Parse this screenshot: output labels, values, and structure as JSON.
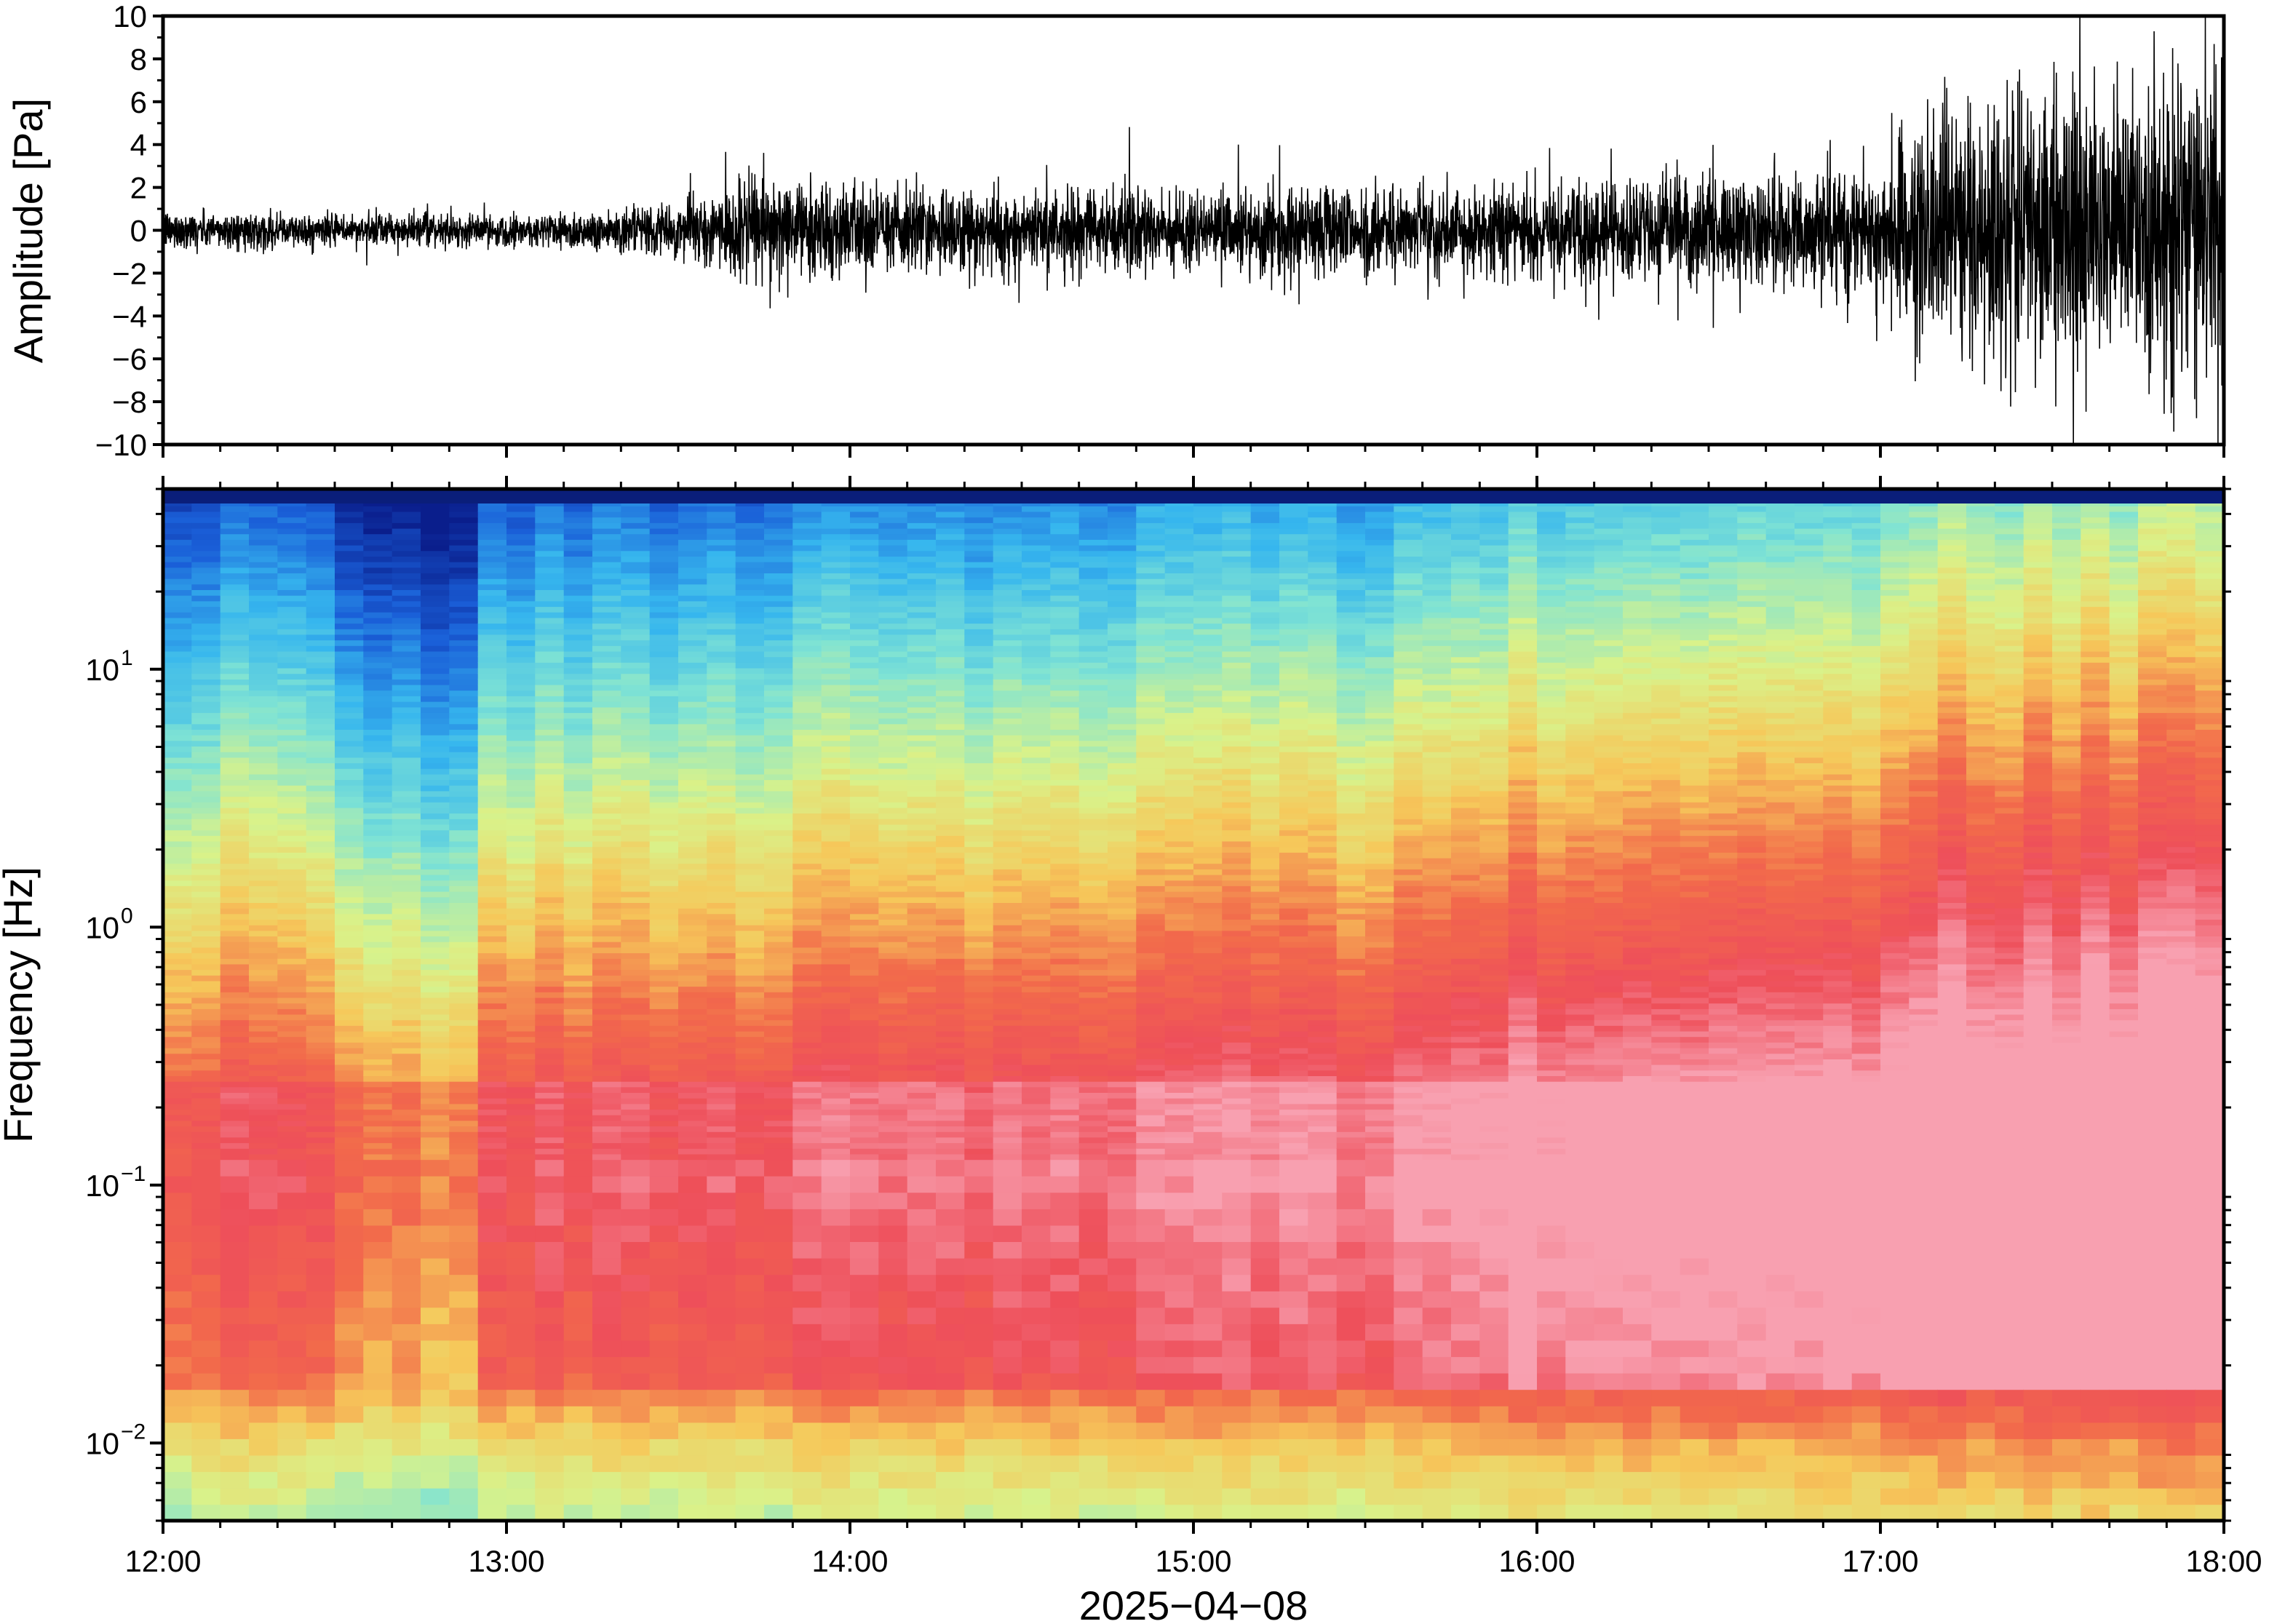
{
  "chart_data": [
    {
      "type": "line",
      "panel": "waveform",
      "title": "",
      "xlabel": "",
      "ylabel": "Amplitude [Pa]",
      "xlim": [
        "12:00",
        "18:00"
      ],
      "ylim": [
        -10,
        10
      ],
      "y_ticks": [
        10,
        8,
        6,
        4,
        2,
        0,
        -2,
        -4,
        -6,
        -8,
        -10
      ],
      "y_tick_labels": [
        "10",
        "8",
        "6",
        "4",
        "2",
        "0",
        "−2",
        "−4",
        "−6",
        "−8",
        "−10"
      ],
      "grid": false,
      "line_color": "#000000",
      "envelope": {
        "description_units": "time in hours after 12:00, typical peak amplitude in Pa",
        "time_h": [
          0.0,
          0.5,
          1.0,
          1.2,
          1.5,
          1.75,
          2.0,
          2.5,
          3.0,
          3.5,
          3.8,
          4.0,
          4.5,
          5.0,
          5.2,
          5.5,
          6.0
        ],
        "amplitude_pa": [
          1.0,
          0.8,
          0.8,
          1.0,
          1.3,
          2.8,
          2.2,
          2.1,
          2.0,
          2.4,
          2.0,
          2.5,
          2.7,
          3.2,
          6.5,
          7.5,
          8.0
        ],
        "max_peak_pa": 10,
        "min_peak_pa": -10
      }
    },
    {
      "type": "heatmap",
      "panel": "spectrogram",
      "title": "",
      "xlabel": "2025−04−08",
      "ylabel": "Frequency [Hz]",
      "y_scale": "log",
      "ylim_hz": [
        0.005,
        50
      ],
      "x_ticks": [
        "12:00",
        "13:00",
        "14:00",
        "15:00",
        "16:00",
        "17:00",
        "18:00"
      ],
      "y_ticks": [
        {
          "base": "10",
          "exp": "−2"
        },
        {
          "base": "10",
          "exp": "−1"
        },
        {
          "base": "10",
          "exp": "0"
        },
        {
          "base": "10",
          "exp": "1"
        }
      ],
      "colormap": "spectral (blue → cyan → yellow → red → pink)",
      "colormap_stops": [
        "#0a1e8c",
        "#1a5fd8",
        "#36b6ee",
        "#7fe3d4",
        "#d9f28a",
        "#f6c85a",
        "#f26a4b",
        "#ee4f5a",
        "#f8a0b0"
      ],
      "power_trend": "low frequencies (0.02–0.3 Hz) red/pink; high frequencies blue; energy increases toward 18:00",
      "grid": false
    }
  ]
}
